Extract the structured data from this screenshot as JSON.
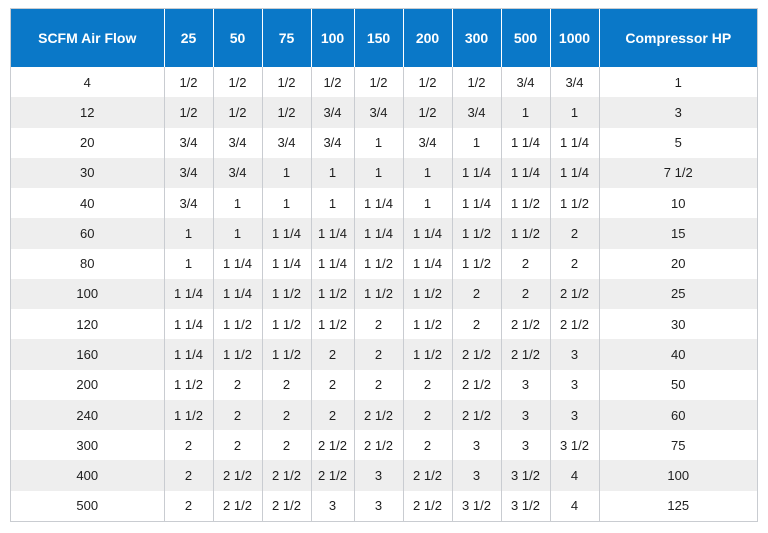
{
  "table": {
    "headers": [
      "SCFM Air Flow",
      "25",
      "50",
      "75",
      "100",
      "150",
      "200",
      "300",
      "500",
      "1000",
      "Compressor HP"
    ],
    "rows": [
      [
        "4",
        "1/2",
        "1/2",
        "1/2",
        "1/2",
        "1/2",
        "1/2",
        "1/2",
        "3/4",
        "3/4",
        "1"
      ],
      [
        "12",
        "1/2",
        "1/2",
        "1/2",
        "3/4",
        "3/4",
        "1/2",
        "3/4",
        "1",
        "1",
        "3"
      ],
      [
        "20",
        "3/4",
        "3/4",
        "3/4",
        "3/4",
        "1",
        "3/4",
        "1",
        "1 1/4",
        "1 1/4",
        "5"
      ],
      [
        "30",
        "3/4",
        "3/4",
        "1",
        "1",
        "1",
        "1",
        "1 1/4",
        "1 1/4",
        "1 1/4",
        "7 1/2"
      ],
      [
        "40",
        "3/4",
        "1",
        "1",
        "1",
        "1 1/4",
        "1",
        "1 1/4",
        "1 1/2",
        "1 1/2",
        "10"
      ],
      [
        "60",
        "1",
        "1",
        "1 1/4",
        "1 1/4",
        "1 1/4",
        "1 1/4",
        "1 1/2",
        "1 1/2",
        "2",
        "15"
      ],
      [
        "80",
        "1",
        "1 1/4",
        "1 1/4",
        "1 1/4",
        "1 1/2",
        "1 1/4",
        "1 1/2",
        "2",
        "2",
        "20"
      ],
      [
        "100",
        "1 1/4",
        "1 1/4",
        "1 1/2",
        "1 1/2",
        "1 1/2",
        "1 1/2",
        "2",
        "2",
        "2 1/2",
        "25"
      ],
      [
        "120",
        "1 1/4",
        "1 1/2",
        "1 1/2",
        "1 1/2",
        "2",
        "1 1/2",
        "2",
        "2 1/2",
        "2 1/2",
        "30"
      ],
      [
        "160",
        "1 1/4",
        "1 1/2",
        "1 1/2",
        "2",
        "2",
        "1 1/2",
        "2 1/2",
        "2 1/2",
        "3",
        "40"
      ],
      [
        "200",
        "1 1/2",
        "2",
        "2",
        "2",
        "2",
        "2",
        "2 1/2",
        "3",
        "3",
        "50"
      ],
      [
        "240",
        "1 1/2",
        "2",
        "2",
        "2",
        "2 1/2",
        "2",
        "2 1/2",
        "3",
        "3",
        "60"
      ],
      [
        "300",
        "2",
        "2",
        "2",
        "2 1/2",
        "2 1/2",
        "2",
        "3",
        "3",
        "3 1/2",
        "75"
      ],
      [
        "400",
        "2",
        "2 1/2",
        "2 1/2",
        "2 1/2",
        "3",
        "2 1/2",
        "3",
        "3 1/2",
        "4",
        "100"
      ],
      [
        "500",
        "2",
        "2 1/2",
        "2 1/2",
        "3",
        "3",
        "2 1/2",
        "3 1/2",
        "3 1/2",
        "4",
        "125"
      ]
    ]
  },
  "colors": {
    "header_bg": "#0a78c8",
    "header_text": "#ffffff",
    "row_alt_bg": "#eeeeee",
    "grid_line": "#c9ccd1"
  }
}
